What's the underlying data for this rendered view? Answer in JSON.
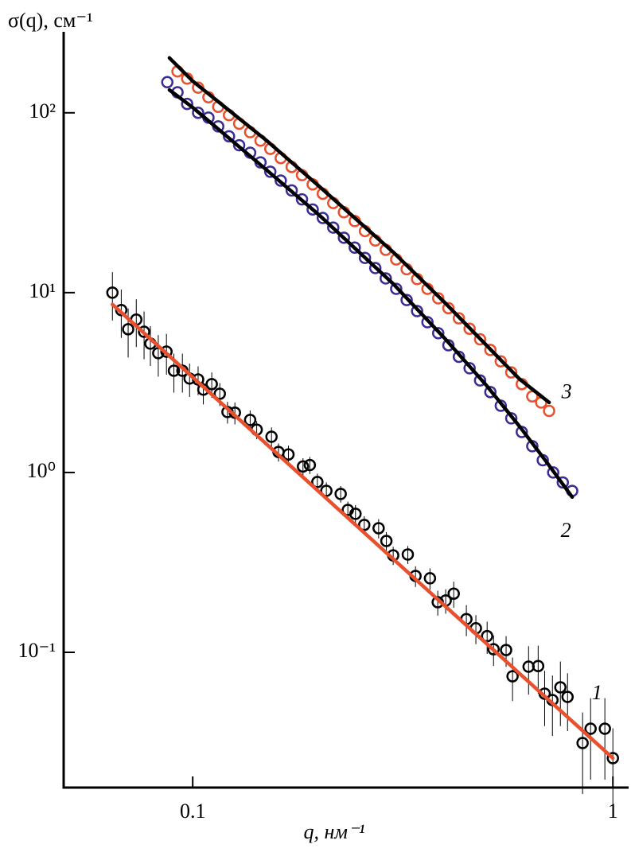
{
  "chart_data": {
    "type": "scatter",
    "y_label": "σ(q), см⁻¹",
    "x_label": "q, нм⁻¹",
    "log_x": true,
    "log_y": true,
    "xlim": [
      0.0493,
      1.09
    ],
    "ylim": [
      0.0177,
      282
    ],
    "xticks": [
      0.1,
      1
    ],
    "yticks": [
      {
        "value": 0.1,
        "label": "10⁻¹"
      },
      {
        "value": 1,
        "label": "10⁰"
      },
      {
        "value": 10,
        "label": "10¹"
      },
      {
        "value": 100,
        "label": "10²"
      }
    ],
    "series": [
      {
        "label": "1",
        "style": "circle",
        "color": "#000000",
        "x": [
          0.0644,
          0.0676,
          0.0702,
          0.0734,
          0.0766,
          0.0793,
          0.0828,
          0.0866,
          0.0902,
          0.0945,
          0.0983,
          0.103,
          0.106,
          0.111,
          0.116,
          0.121,
          0.126,
          0.137,
          0.142,
          0.154,
          0.16,
          0.169,
          0.183,
          0.19,
          0.198,
          0.208,
          0.225,
          0.234,
          0.244,
          0.256,
          0.277,
          0.289,
          0.3,
          0.325,
          0.339,
          0.367,
          0.383,
          0.4,
          0.418,
          0.448,
          0.472,
          0.502,
          0.52,
          0.557,
          0.577,
          0.63,
          0.664,
          0.688,
          0.718,
          0.75,
          0.78,
          0.847,
          0.885,
          0.957,
          1.0
        ],
        "values": [
          10,
          8.0,
          6.26,
          7.08,
          6.06,
          5.21,
          4.61,
          4.7,
          3.68,
          3.68,
          3.33,
          3.29,
          2.89,
          3.1,
          2.74,
          2.17,
          2.15,
          1.96,
          1.73,
          1.58,
          1.3,
          1.26,
          1.08,
          1.1,
          0.885,
          0.791,
          0.76,
          0.619,
          0.589,
          0.511,
          0.49,
          0.416,
          0.346,
          0.35,
          0.266,
          0.258,
          0.19,
          0.194,
          0.212,
          0.153,
          0.136,
          0.123,
          0.104,
          0.103,
          0.0736,
          0.0832,
          0.0839,
          0.0589,
          0.0543,
          0.0639,
          0.0565,
          0.0313,
          0.0376,
          0.0376,
          0.0258
        ],
        "errors": [
          3,
          2.4,
          1.9,
          2.1,
          1.8,
          1.3,
          1.2,
          1.2,
          0.9,
          0.9,
          0.7,
          0.6,
          0.5,
          0.5,
          0.4,
          0.3,
          0.3,
          0.25,
          0.2,
          0.2,
          0.15,
          0.15,
          0.12,
          0.12,
          0.1,
          0.09,
          0.08,
          0.07,
          0.07,
          0.06,
          0.06,
          0.05,
          0.04,
          0.04,
          0.035,
          0.035,
          0.03,
          0.03,
          0.035,
          0.03,
          0.025,
          0.025,
          0.02,
          0.02,
          0.02,
          0.025,
          0.025,
          0.02,
          0.02,
          0.025,
          0.02,
          0.015,
          0.018,
          0.018,
          0.012
        ]
      },
      {
        "style": "line",
        "color": "#e8502e",
        "x": [
          0.0644,
          1.0
        ],
        "values": [
          8.6,
          0.0258
        ]
      },
      {
        "label": "2",
        "style": "circle",
        "color": "#3a2d96",
        "x": [
          0.087,
          0.092,
          0.097,
          0.103,
          0.109,
          0.115,
          0.122,
          0.129,
          0.137,
          0.145,
          0.153,
          0.162,
          0.172,
          0.182,
          0.193,
          0.204,
          0.216,
          0.229,
          0.243,
          0.257,
          0.272,
          0.288,
          0.305,
          0.323,
          0.342,
          0.362,
          0.384,
          0.406,
          0.43,
          0.456,
          0.483,
          0.511,
          0.541,
          0.573,
          0.607,
          0.643,
          0.681,
          0.721,
          0.76,
          0.8
        ],
        "values": [
          148,
          130,
          112,
          100,
          94,
          84,
          74,
          66,
          60,
          53,
          47,
          42,
          37,
          33,
          29,
          26,
          23,
          20.2,
          17.8,
          15.6,
          13.7,
          12.0,
          10.5,
          9.1,
          7.9,
          6.85,
          5.95,
          5.1,
          4.4,
          3.8,
          3.25,
          2.8,
          2.35,
          2.0,
          1.68,
          1.4,
          1.17,
          1.0,
          0.88,
          0.79
        ]
      },
      {
        "style": "line",
        "color": "#000000",
        "x": [
          0.088,
          0.1,
          0.15,
          0.2,
          0.3,
          0.4,
          0.5,
          0.6,
          0.7,
          0.8
        ],
        "values": [
          134,
          107,
          48,
          27,
          11.2,
          5.5,
          3.05,
          1.8,
          1.12,
          0.73
        ]
      },
      {
        "label": "3",
        "style": "circle",
        "color": "#e8502e",
        "x": [
          0.092,
          0.097,
          0.103,
          0.109,
          0.115,
          0.122,
          0.129,
          0.137,
          0.145,
          0.153,
          0.162,
          0.172,
          0.182,
          0.193,
          0.204,
          0.216,
          0.229,
          0.243,
          0.257,
          0.272,
          0.288,
          0.305,
          0.323,
          0.342,
          0.362,
          0.384,
          0.406,
          0.43,
          0.456,
          0.483,
          0.511,
          0.541,
          0.573,
          0.607,
          0.643,
          0.675,
          0.705
        ],
        "values": [
          170,
          155,
          138,
          122,
          108,
          97,
          87,
          78,
          70,
          63,
          56,
          50,
          45,
          40,
          35.5,
          31.5,
          28,
          25,
          22,
          19.5,
          17.3,
          15.3,
          13.5,
          11.9,
          10.5,
          9.3,
          8.2,
          7.2,
          6.3,
          5.5,
          4.8,
          4.15,
          3.6,
          3.1,
          2.65,
          2.45,
          2.2
        ]
      },
      {
        "style": "line",
        "color": "#000000",
        "x": [
          0.088,
          0.1,
          0.15,
          0.2,
          0.3,
          0.4,
          0.5,
          0.6,
          0.705
        ],
        "values": [
          202,
          150,
          70,
          39,
          16.8,
          8.7,
          5.1,
          3.3,
          2.45
        ]
      }
    ]
  }
}
